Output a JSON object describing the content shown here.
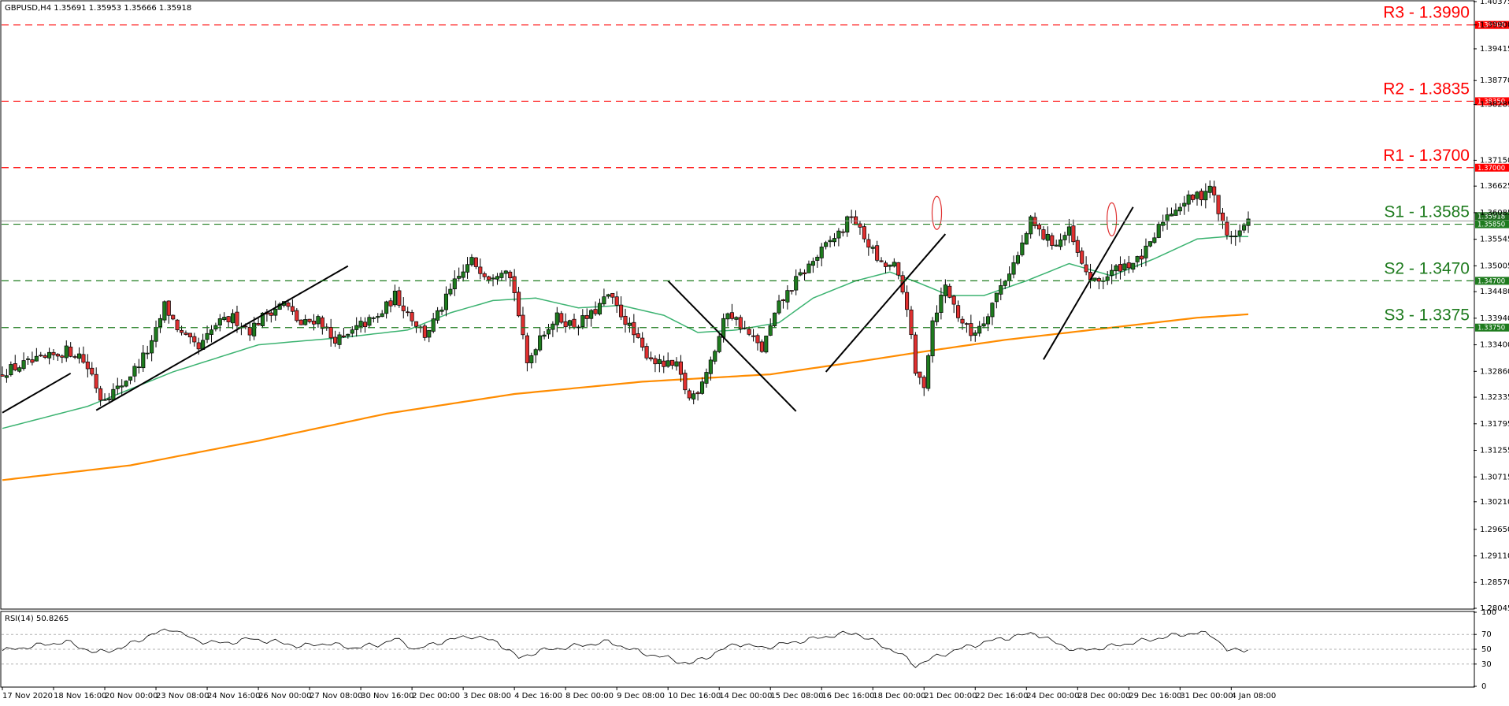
{
  "header": {
    "symbol": "GBPUSD,H4",
    "ohlc": "1.35691 1.35953 1.35666 1.35918"
  },
  "rsi_label": "RSI(14) 50.8265",
  "colors": {
    "bull": "#1e7b1e",
    "bear": "#e03030",
    "ema50": "#3cb371",
    "ema200": "#ff8c00",
    "resistance": "#ff0000",
    "support": "#1e7b1e",
    "rsi_line": "#000000"
  },
  "chart_data": {
    "type": "candlestick",
    "ylim": [
      1.28045,
      1.40375
    ],
    "price_ticks": [
      "1.40375",
      "1.39900",
      "1.39415",
      "1.38770",
      "1.38285",
      "1.37150",
      "1.36625",
      "1.36085",
      "1.35545",
      "1.35005",
      "1.34480",
      "1.33940",
      "1.33400",
      "1.32860",
      "1.32335",
      "1.31795",
      "1.31255",
      "1.30715",
      "1.30210",
      "1.29650",
      "1.29110",
      "1.28570",
      "1.28045"
    ],
    "levels": [
      {
        "label": "R3 - 1.3990",
        "tag": "1.39900",
        "value": 1.399,
        "kind": "resistance"
      },
      {
        "label": "R2 - 1.3835",
        "tag": "1.38350",
        "value": 1.3835,
        "kind": "resistance"
      },
      {
        "label": "R1 - 1.3700",
        "tag": "1.37000",
        "value": 1.37,
        "kind": "resistance"
      },
      {
        "label": "",
        "tag": "1.35918",
        "value": 1.35918,
        "kind": "current"
      },
      {
        "label": "S1 - 1.3585",
        "tag": "1.35850",
        "value": 1.3585,
        "kind": "support"
      },
      {
        "label": "S2 - 1.3470",
        "tag": "1.34700",
        "value": 1.347,
        "kind": "support"
      },
      {
        "label": "S3 - 1.3375",
        "tag": "1.33750",
        "value": 1.3375,
        "kind": "support"
      }
    ],
    "x_labels": [
      "17 Nov 2020",
      "18 Nov 16:00",
      "20 Nov 00:00",
      "23 Nov 08:00",
      "24 Nov 16:00",
      "26 Nov 00:00",
      "27 Nov 08:00",
      "30 Nov 16:00",
      "2 Dec 00:00",
      "3 Dec 08:00",
      "4 Dec 16:00",
      "8 Dec 00:00",
      "9 Dec 08:00",
      "10 Dec 16:00",
      "14 Dec 00:00",
      "15 Dec 08:00",
      "16 Dec 16:00",
      "18 Dec 00:00",
      "21 Dec 00:00",
      "22 Dec 16:00",
      "24 Dec 00:00",
      "28 Dec 00:00",
      "29 Dec 16:00",
      "31 Dec 00:00",
      "4 Jan 08:00"
    ],
    "close_path": [
      [
        0,
        1.3285
      ],
      [
        5,
        1.33
      ],
      [
        10,
        1.331
      ],
      [
        15,
        1.3328
      ],
      [
        18,
        1.332
      ],
      [
        21,
        1.328
      ],
      [
        23,
        1.3232
      ],
      [
        27,
        1.325
      ],
      [
        31,
        1.329
      ],
      [
        35,
        1.334
      ],
      [
        38,
        1.342
      ],
      [
        42,
        1.336
      ],
      [
        46,
        1.333
      ],
      [
        50,
        1.338
      ],
      [
        54,
        1.3395
      ],
      [
        58,
        1.337
      ],
      [
        62,
        1.3405
      ],
      [
        66,
        1.3425
      ],
      [
        70,
        1.338
      ],
      [
        74,
        1.3395
      ],
      [
        77,
        1.3355
      ],
      [
        80,
        1.335
      ],
      [
        84,
        1.338
      ],
      [
        88,
        1.3395
      ],
      [
        92,
        1.344
      ],
      [
        96,
        1.3395
      ],
      [
        99,
        1.336
      ],
      [
        102,
        1.34
      ],
      [
        106,
        1.3465
      ],
      [
        110,
        1.351
      ],
      [
        114,
        1.348
      ],
      [
        118,
        1.35
      ],
      [
        120,
        1.345
      ],
      [
        123,
        1.33
      ],
      [
        126,
        1.336
      ],
      [
        130,
        1.3395
      ],
      [
        134,
        1.338
      ],
      [
        138,
        1.34
      ],
      [
        142,
        1.344
      ],
      [
        146,
        1.339
      ],
      [
        150,
        1.333
      ],
      [
        154,
        1.33
      ],
      [
        158,
        1.3295
      ],
      [
        161,
        1.323
      ],
      [
        163,
        1.325
      ],
      [
        167,
        1.333
      ],
      [
        170,
        1.341
      ],
      [
        174,
        1.337
      ],
      [
        178,
        1.333
      ],
      [
        182,
        1.342
      ],
      [
        186,
        1.347
      ],
      [
        190,
        1.351
      ],
      [
        194,
        1.355
      ],
      [
        197,
        1.3575
      ],
      [
        199,
        1.3605
      ],
      [
        201,
        1.357
      ],
      [
        203,
        1.3545
      ],
      [
        206,
        1.35
      ],
      [
        209,
        1.35
      ],
      [
        212,
        1.342
      ],
      [
        214,
        1.328
      ],
      [
        216,
        1.326
      ],
      [
        218,
        1.339
      ],
      [
        221,
        1.346
      ],
      [
        224,
        1.34
      ],
      [
        227,
        1.336
      ],
      [
        230,
        1.339
      ],
      [
        234,
        1.346
      ],
      [
        238,
        1.352
      ],
      [
        241,
        1.359
      ],
      [
        244,
        1.356
      ],
      [
        247,
        1.3545
      ],
      [
        250,
        1.357
      ],
      [
        253,
        1.35
      ],
      [
        256,
        1.3465
      ],
      [
        259,
        1.348
      ],
      [
        262,
        1.35
      ],
      [
        266,
        1.351
      ],
      [
        269,
        1.354
      ],
      [
        272,
        1.3595
      ],
      [
        275,
        1.362
      ],
      [
        278,
        1.3635
      ],
      [
        281,
        1.3645
      ],
      [
        283,
        1.3665
      ],
      [
        285,
        1.361
      ],
      [
        287,
        1.356
      ],
      [
        290,
        1.357
      ],
      [
        292,
        1.3592
      ]
    ],
    "series": [
      {
        "name": "",
        "type": "ema50",
        "points": [
          [
            0,
            1.317
          ],
          [
            20,
            1.3215
          ],
          [
            40,
            1.3285
          ],
          [
            60,
            1.334
          ],
          [
            80,
            1.3355
          ],
          [
            95,
            1.337
          ],
          [
            105,
            1.3405
          ],
          [
            115,
            1.343
          ],
          [
            125,
            1.3435
          ],
          [
            135,
            1.3415
          ],
          [
            145,
            1.342
          ],
          [
            155,
            1.34
          ],
          [
            163,
            1.3365
          ],
          [
            172,
            1.337
          ],
          [
            182,
            1.3385
          ],
          [
            190,
            1.3435
          ],
          [
            200,
            1.347
          ],
          [
            208,
            1.3488
          ],
          [
            215,
            1.3465
          ],
          [
            222,
            1.344
          ],
          [
            230,
            1.344
          ],
          [
            240,
            1.347
          ],
          [
            250,
            1.3505
          ],
          [
            260,
            1.348
          ],
          [
            270,
            1.3515
          ],
          [
            280,
            1.3555
          ],
          [
            287,
            1.356
          ],
          [
            292,
            1.356
          ]
        ]
      },
      {
        "name": "",
        "type": "ema200",
        "points": [
          [
            0,
            1.3065
          ],
          [
            30,
            1.3095
          ],
          [
            60,
            1.3145
          ],
          [
            90,
            1.32
          ],
          [
            120,
            1.324
          ],
          [
            150,
            1.3265
          ],
          [
            180,
            1.328
          ],
          [
            200,
            1.3305
          ],
          [
            215,
            1.3325
          ],
          [
            235,
            1.335
          ],
          [
            260,
            1.3375
          ],
          [
            280,
            1.3395
          ],
          [
            292,
            1.3402
          ]
        ]
      }
    ],
    "rsi": {
      "ylim": [
        0,
        100
      ],
      "ticks": [
        100,
        70,
        50,
        30,
        0
      ],
      "value": 50.8265,
      "points": [
        [
          0,
          48
        ],
        [
          8,
          55
        ],
        [
          15,
          60
        ],
        [
          22,
          45
        ],
        [
          28,
          52
        ],
        [
          35,
          70
        ],
        [
          40,
          78
        ],
        [
          45,
          62
        ],
        [
          52,
          58
        ],
        [
          58,
          64
        ],
        [
          64,
          60
        ],
        [
          70,
          54
        ],
        [
          76,
          58
        ],
        [
          82,
          52
        ],
        [
          88,
          56
        ],
        [
          92,
          64
        ],
        [
          97,
          50
        ],
        [
          104,
          62
        ],
        [
          110,
          68
        ],
        [
          116,
          60
        ],
        [
          121,
          38
        ],
        [
          126,
          48
        ],
        [
          134,
          54
        ],
        [
          142,
          60
        ],
        [
          150,
          45
        ],
        [
          156,
          38
        ],
        [
          161,
          30
        ],
        [
          166,
          42
        ],
        [
          172,
          58
        ],
        [
          178,
          52
        ],
        [
          184,
          58
        ],
        [
          190,
          64
        ],
        [
          196,
          70
        ],
        [
          200,
          72
        ],
        [
          205,
          58
        ],
        [
          210,
          45
        ],
        [
          214,
          28
        ],
        [
          218,
          38
        ],
        [
          224,
          50
        ],
        [
          232,
          62
        ],
        [
          238,
          68
        ],
        [
          242,
          72
        ],
        [
          247,
          58
        ],
        [
          252,
          48
        ],
        [
          258,
          52
        ],
        [
          264,
          58
        ],
        [
          270,
          64
        ],
        [
          276,
          70
        ],
        [
          281,
          72
        ],
        [
          284,
          68
        ],
        [
          287,
          48
        ],
        [
          290,
          49
        ],
        [
          292,
          51
        ]
      ]
    },
    "trendlines": [
      [
        [
          0,
          1.3202
        ],
        [
          16,
          1.3282
        ]
      ],
      [
        [
          22,
          1.3207
        ],
        [
          81,
          1.35
        ]
      ],
      [
        [
          156,
          1.347
        ],
        [
          186,
          1.3205
        ]
      ],
      [
        [
          193,
          1.3285
        ],
        [
          221,
          1.3565
        ]
      ],
      [
        [
          244,
          1.331
        ],
        [
          265,
          1.362
        ]
      ]
    ],
    "ellipses": [
      [
        219,
        1.3608
      ],
      [
        260,
        1.3595
      ]
    ]
  }
}
